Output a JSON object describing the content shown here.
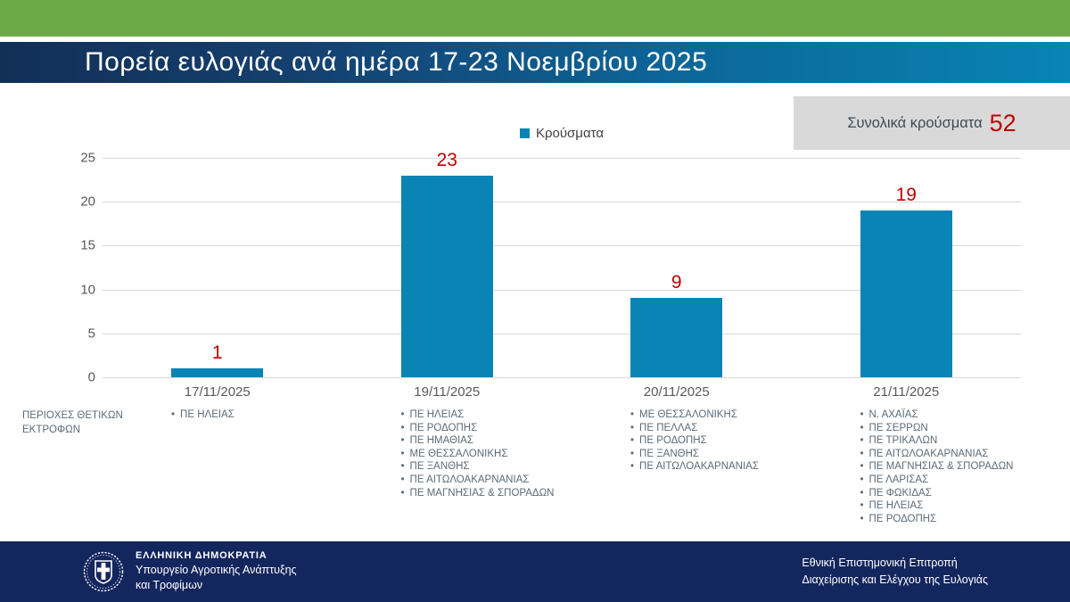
{
  "slide": {
    "title": "Πορεία ευλογιάς ανά ημέρα 17-23 Νοεμβρίου 2025"
  },
  "legend": {
    "label": "Κρούσματα"
  },
  "total": {
    "label": "Συνολικά κρούσματα",
    "value": "52"
  },
  "chart_data": {
    "type": "bar",
    "title": "Πορεία ευλογιάς ανά ημέρα 17-23 Νοεμβρίου 2025",
    "series_name": "Κρούσματα",
    "categories": [
      "17/11/2025",
      "19/11/2025",
      "20/11/2025",
      "21/11/2025"
    ],
    "values": [
      1,
      23,
      9,
      19
    ],
    "data_labels": [
      "1",
      "23",
      "9",
      "19"
    ],
    "total_label": "Συνολικά κρούσματα",
    "total_value": 52,
    "xlabel": "",
    "ylabel": "",
    "ylim": [
      0,
      25
    ],
    "yticks": [
      0,
      5,
      10,
      15,
      20,
      25
    ],
    "grid": true,
    "legend_position": "top-center",
    "bar_color": "#0984b5",
    "data_label_color": "#c00000"
  },
  "regions": {
    "header": "ΠΕΡΙΟΧΕΣ ΘΕΤΙΚΩΝ ΕΚΤΡΟΦΩΝ",
    "columns": [
      {
        "date": "17/11/2025",
        "items": [
          "ΠΕ ΗΛΕΙΑΣ"
        ]
      },
      {
        "date": "19/11/2025",
        "items": [
          "ΠΕ ΗΛΕΙΑΣ",
          "ΠΕ ΡΟΔΟΠΗΣ",
          "ΠΕ ΗΜΑΘΙΑΣ",
          "ΜΕ ΘΕΣΣΑΛΟΝΙΚΗΣ",
          "ΠΕ ΞΑΝΘΗΣ",
          "ΠΕ ΑΙΤΩΛΟΑΚΑΡΝΑΝΙΑΣ",
          "ΠΕ ΜΑΓΝΗΣΙΑΣ & ΣΠΟΡΑΔΩΝ"
        ]
      },
      {
        "date": "20/11/2025",
        "items": [
          "ΜΕ ΘΕΣΣΑΛΟΝΙΚΗΣ",
          "ΠΕ ΠΕΛΛΑΣ",
          "ΠΕ ΡΟΔΟΠΗΣ",
          "ΠΕ ΞΑΝΘΗΣ",
          "ΠΕ ΑΙΤΩΛΟΑΚΑΡΝΑΝΙΑΣ"
        ]
      },
      {
        "date": "21/11/2025",
        "items": [
          "Ν. ΑΧΑΪΑΣ",
          "ΠΕ ΣΕΡΡΩΝ",
          "ΠΕ ΤΡΙΚΑΛΩΝ",
          "ΠΕ ΑΙΤΩΛΟΑΚΑΡΝΑΝΙΑΣ",
          "ΠΕ ΜΑΓΝΗΣΙΑΣ & ΣΠΟΡΑΔΩΝ",
          "ΠΕ ΛΑΡΙΣΑΣ",
          "ΠΕ ΦΩΚΙΔΑΣ",
          "ΠΕ ΗΛΕΙΑΣ",
          "ΠΕ ΡΟΔΟΠΗΣ"
        ]
      }
    ]
  },
  "footer": {
    "org_name": "ΕΛΛΗΝΙΚΗ ΔΗΜΟΚΡΑΤΙΑ",
    "ministry_line1": "Υπουργείο Αγροτικής Ανάπτυξης",
    "ministry_line2": "και Τροφίμων",
    "committee_line1": "Εθνική Επιστημονική Επιτροπή",
    "committee_line2": "Διαχείρισης και Ελέγχου της Ευλογιάς"
  },
  "colors": {
    "accent_green": "#6caa47",
    "header_gradient_left": "#122f57",
    "header_gradient_right": "#0884b5",
    "bar_blue": "#0984b5",
    "label_red": "#c00000",
    "total_box_gray": "#d9d9d9",
    "axis_text_gray": "#595959",
    "list_text_gray": "#5b6b78",
    "footer_navy": "#14265e",
    "gridline_gray": "#d9d9d9"
  }
}
